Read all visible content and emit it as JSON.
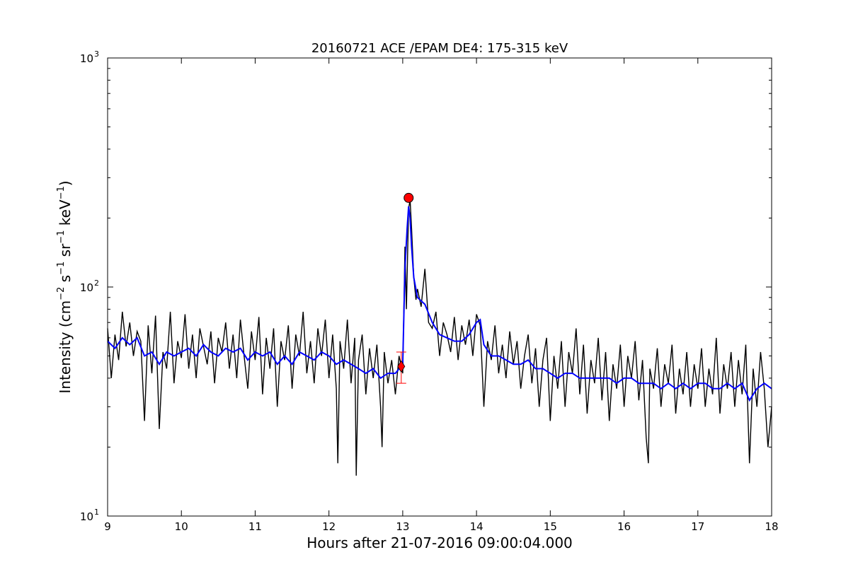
{
  "chart_data": {
    "type": "line",
    "title": "20160721 ACE /EPAM DE4: 175-315 keV",
    "xlabel": "Hours after 21-07-2016 09:00:04.000",
    "ylabel": {
      "prefix": "Intensity (cm",
      "exp1": "−2",
      "s": " s",
      "exp2": "−1",
      "sr": " sr",
      "exp3": "−1",
      "kev": " keV",
      "exp4": "−1",
      "suffix": ")"
    },
    "xlim": [
      9,
      18
    ],
    "ylim": [
      10,
      1000
    ],
    "yscale": "log",
    "grid": false,
    "x_ticks": [
      9,
      10,
      11,
      12,
      13,
      14,
      15,
      16,
      17,
      18
    ],
    "x_tick_labels": [
      "9",
      "10",
      "11",
      "12",
      "13",
      "14",
      "15",
      "16",
      "17",
      "18"
    ],
    "y_ticks": [
      10,
      100,
      1000
    ],
    "y_tick_labels": [
      {
        "base": "10",
        "exp": "1"
      },
      {
        "base": "10",
        "exp": "2"
      },
      {
        "base": "10",
        "exp": "3"
      }
    ],
    "colors": {
      "raw": "#000000",
      "smoothed": "#0000ff",
      "marker": "#ff0000"
    },
    "series": [
      {
        "role": "raw",
        "color": "#000000",
        "points": [
          [
            9.0,
            66
          ],
          [
            9.05,
            40
          ],
          [
            9.1,
            62
          ],
          [
            9.15,
            48
          ],
          [
            9.2,
            78
          ],
          [
            9.25,
            55
          ],
          [
            9.3,
            70
          ],
          [
            9.35,
            50
          ],
          [
            9.4,
            64
          ],
          [
            9.45,
            58
          ],
          [
            9.5,
            26
          ],
          [
            9.55,
            68
          ],
          [
            9.6,
            42
          ],
          [
            9.65,
            75
          ],
          [
            9.7,
            24
          ],
          [
            9.75,
            52
          ],
          [
            9.8,
            44
          ],
          [
            9.85,
            78
          ],
          [
            9.9,
            38
          ],
          [
            9.95,
            58
          ],
          [
            10.0,
            49
          ],
          [
            10.05,
            76
          ],
          [
            10.1,
            44
          ],
          [
            10.15,
            62
          ],
          [
            10.2,
            40
          ],
          [
            10.25,
            66
          ],
          [
            10.3,
            55
          ],
          [
            10.35,
            46
          ],
          [
            10.4,
            64
          ],
          [
            10.45,
            38
          ],
          [
            10.5,
            60
          ],
          [
            10.55,
            52
          ],
          [
            10.6,
            70
          ],
          [
            10.65,
            44
          ],
          [
            10.7,
            62
          ],
          [
            10.75,
            40
          ],
          [
            10.8,
            72
          ],
          [
            10.85,
            50
          ],
          [
            10.9,
            36
          ],
          [
            10.95,
            64
          ],
          [
            11.0,
            48
          ],
          [
            11.05,
            74
          ],
          [
            11.1,
            34
          ],
          [
            11.15,
            60
          ],
          [
            11.2,
            44
          ],
          [
            11.25,
            66
          ],
          [
            11.3,
            30
          ],
          [
            11.35,
            58
          ],
          [
            11.4,
            48
          ],
          [
            11.45,
            68
          ],
          [
            11.5,
            36
          ],
          [
            11.55,
            62
          ],
          [
            11.6,
            50
          ],
          [
            11.65,
            78
          ],
          [
            11.7,
            42
          ],
          [
            11.75,
            58
          ],
          [
            11.8,
            38
          ],
          [
            11.85,
            66
          ],
          [
            11.9,
            50
          ],
          [
            11.95,
            72
          ],
          [
            12.0,
            40
          ],
          [
            12.05,
            62
          ],
          [
            12.1,
            36
          ],
          [
            12.12,
            17
          ],
          [
            12.15,
            58
          ],
          [
            12.2,
            44
          ],
          [
            12.25,
            72
          ],
          [
            12.3,
            38
          ],
          [
            12.35,
            60
          ],
          [
            12.37,
            15
          ],
          [
            12.4,
            48
          ],
          [
            12.45,
            62
          ],
          [
            12.5,
            34
          ],
          [
            12.55,
            54
          ],
          [
            12.6,
            40
          ],
          [
            12.65,
            56
          ],
          [
            12.7,
            30
          ],
          [
            12.72,
            20
          ],
          [
            12.75,
            52
          ],
          [
            12.8,
            38
          ],
          [
            12.85,
            48
          ],
          [
            12.9,
            34
          ],
          [
            12.95,
            50
          ],
          [
            13.0,
            42
          ],
          [
            13.03,
            150
          ],
          [
            13.05,
            80
          ],
          [
            13.08,
            220
          ],
          [
            13.1,
            240
          ],
          [
            13.12,
            180
          ],
          [
            13.15,
            110
          ],
          [
            13.18,
            88
          ],
          [
            13.2,
            98
          ],
          [
            13.25,
            82
          ],
          [
            13.3,
            120
          ],
          [
            13.35,
            70
          ],
          [
            13.4,
            66
          ],
          [
            13.45,
            78
          ],
          [
            13.5,
            50
          ],
          [
            13.55,
            70
          ],
          [
            13.6,
            62
          ],
          [
            13.65,
            52
          ],
          [
            13.7,
            74
          ],
          [
            13.75,
            48
          ],
          [
            13.8,
            68
          ],
          [
            13.85,
            56
          ],
          [
            13.9,
            72
          ],
          [
            13.95,
            50
          ],
          [
            14.0,
            76
          ],
          [
            14.05,
            68
          ],
          [
            14.1,
            30
          ],
          [
            14.15,
            58
          ],
          [
            14.2,
            48
          ],
          [
            14.25,
            68
          ],
          [
            14.3,
            42
          ],
          [
            14.35,
            56
          ],
          [
            14.4,
            40
          ],
          [
            14.45,
            64
          ],
          [
            14.5,
            46
          ],
          [
            14.55,
            58
          ],
          [
            14.6,
            36
          ],
          [
            14.65,
            50
          ],
          [
            14.7,
            62
          ],
          [
            14.75,
            38
          ],
          [
            14.8,
            54
          ],
          [
            14.85,
            30
          ],
          [
            14.9,
            48
          ],
          [
            14.95,
            60
          ],
          [
            15.0,
            26
          ],
          [
            15.05,
            50
          ],
          [
            15.1,
            36
          ],
          [
            15.15,
            58
          ],
          [
            15.2,
            30
          ],
          [
            15.25,
            52
          ],
          [
            15.3,
            42
          ],
          [
            15.35,
            66
          ],
          [
            15.4,
            34
          ],
          [
            15.45,
            56
          ],
          [
            15.5,
            28
          ],
          [
            15.55,
            48
          ],
          [
            15.6,
            38
          ],
          [
            15.65,
            60
          ],
          [
            15.7,
            32
          ],
          [
            15.75,
            52
          ],
          [
            15.8,
            26
          ],
          [
            15.85,
            46
          ],
          [
            15.9,
            36
          ],
          [
            15.95,
            56
          ],
          [
            16.0,
            30
          ],
          [
            16.05,
            50
          ],
          [
            16.1,
            40
          ],
          [
            16.15,
            58
          ],
          [
            16.2,
            32
          ],
          [
            16.25,
            48
          ],
          [
            16.3,
            22
          ],
          [
            16.33,
            17
          ],
          [
            16.35,
            44
          ],
          [
            16.4,
            36
          ],
          [
            16.45,
            54
          ],
          [
            16.5,
            30
          ],
          [
            16.55,
            46
          ],
          [
            16.6,
            38
          ],
          [
            16.65,
            56
          ],
          [
            16.7,
            28
          ],
          [
            16.75,
            44
          ],
          [
            16.8,
            34
          ],
          [
            16.85,
            52
          ],
          [
            16.9,
            30
          ],
          [
            16.95,
            46
          ],
          [
            17.0,
            36
          ],
          [
            17.05,
            54
          ],
          [
            17.1,
            30
          ],
          [
            17.15,
            44
          ],
          [
            17.2,
            34
          ],
          [
            17.25,
            60
          ],
          [
            17.3,
            28
          ],
          [
            17.35,
            46
          ],
          [
            17.4,
            36
          ],
          [
            17.45,
            52
          ],
          [
            17.5,
            30
          ],
          [
            17.55,
            48
          ],
          [
            17.6,
            34
          ],
          [
            17.65,
            56
          ],
          [
            17.7,
            17
          ],
          [
            17.75,
            44
          ],
          [
            17.8,
            30
          ],
          [
            17.85,
            52
          ],
          [
            17.9,
            36
          ],
          [
            17.95,
            20
          ],
          [
            18.0,
            30
          ]
        ]
      },
      {
        "role": "smoothed",
        "color": "#0000ff",
        "points": [
          [
            9.0,
            58
          ],
          [
            9.1,
            54
          ],
          [
            9.2,
            60
          ],
          [
            9.3,
            56
          ],
          [
            9.4,
            60
          ],
          [
            9.5,
            50
          ],
          [
            9.6,
            52
          ],
          [
            9.7,
            46
          ],
          [
            9.8,
            52
          ],
          [
            9.9,
            50
          ],
          [
            10.0,
            52
          ],
          [
            10.1,
            54
          ],
          [
            10.2,
            50
          ],
          [
            10.3,
            56
          ],
          [
            10.4,
            52
          ],
          [
            10.5,
            50
          ],
          [
            10.6,
            54
          ],
          [
            10.7,
            52
          ],
          [
            10.8,
            54
          ],
          [
            10.9,
            48
          ],
          [
            11.0,
            52
          ],
          [
            11.1,
            50
          ],
          [
            11.2,
            52
          ],
          [
            11.3,
            46
          ],
          [
            11.4,
            50
          ],
          [
            11.5,
            46
          ],
          [
            11.6,
            52
          ],
          [
            11.7,
            50
          ],
          [
            11.8,
            48
          ],
          [
            11.9,
            52
          ],
          [
            12.0,
            50
          ],
          [
            12.1,
            46
          ],
          [
            12.2,
            48
          ],
          [
            12.3,
            46
          ],
          [
            12.4,
            44
          ],
          [
            12.5,
            42
          ],
          [
            12.6,
            44
          ],
          [
            12.7,
            40
          ],
          [
            12.8,
            42
          ],
          [
            12.9,
            42
          ],
          [
            13.0,
            46
          ],
          [
            13.03,
            120
          ],
          [
            13.06,
            180
          ],
          [
            13.08,
            225
          ],
          [
            13.1,
            200
          ],
          [
            13.12,
            150
          ],
          [
            13.15,
            110
          ],
          [
            13.2,
            90
          ],
          [
            13.3,
            84
          ],
          [
            13.4,
            70
          ],
          [
            13.5,
            62
          ],
          [
            13.6,
            60
          ],
          [
            13.7,
            58
          ],
          [
            13.8,
            58
          ],
          [
            13.9,
            62
          ],
          [
            14.0,
            70
          ],
          [
            14.05,
            72
          ],
          [
            14.1,
            56
          ],
          [
            14.2,
            50
          ],
          [
            14.3,
            50
          ],
          [
            14.4,
            48
          ],
          [
            14.5,
            46
          ],
          [
            14.6,
            46
          ],
          [
            14.7,
            48
          ],
          [
            14.8,
            44
          ],
          [
            14.9,
            44
          ],
          [
            15.0,
            42
          ],
          [
            15.1,
            40
          ],
          [
            15.2,
            42
          ],
          [
            15.3,
            42
          ],
          [
            15.4,
            40
          ],
          [
            15.5,
            40
          ],
          [
            15.6,
            40
          ],
          [
            15.7,
            40
          ],
          [
            15.8,
            40
          ],
          [
            15.9,
            38
          ],
          [
            16.0,
            40
          ],
          [
            16.1,
            40
          ],
          [
            16.2,
            38
          ],
          [
            16.3,
            38
          ],
          [
            16.4,
            38
          ],
          [
            16.5,
            36
          ],
          [
            16.6,
            38
          ],
          [
            16.7,
            36
          ],
          [
            16.8,
            38
          ],
          [
            16.9,
            36
          ],
          [
            17.0,
            38
          ],
          [
            17.1,
            38
          ],
          [
            17.2,
            36
          ],
          [
            17.3,
            36
          ],
          [
            17.4,
            38
          ],
          [
            17.5,
            36
          ],
          [
            17.6,
            38
          ],
          [
            17.7,
            32
          ],
          [
            17.8,
            36
          ],
          [
            17.9,
            38
          ],
          [
            18.0,
            36
          ]
        ]
      }
    ],
    "peak_marker": {
      "x": 13.08,
      "y": 245,
      "shape": "circle",
      "color": "#ff0000"
    },
    "onset_marker": {
      "x": 12.98,
      "y": 45,
      "shape": "diamond",
      "color": "#ff0000",
      "err_low": 38,
      "err_high": 52
    }
  }
}
